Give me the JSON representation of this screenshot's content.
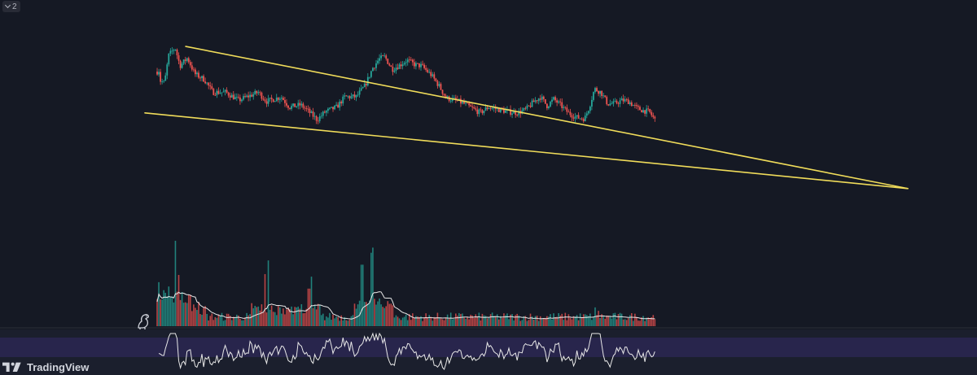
{
  "legend": {
    "pane_count": "2"
  },
  "brand": {
    "name": "TradingView"
  },
  "colors": {
    "background": "#151924",
    "up_candle": "#26a69a",
    "down_candle": "#ef5350",
    "trendline": "#f0dc5a",
    "volume_ma": "#e8e8e8",
    "rsi_line": "#e8e8e8",
    "rsi_band": "#2a2650"
  },
  "chart_data": {
    "type": "candlestick",
    "grid": false,
    "price_path": [
      [
        0,
        0.78
      ],
      [
        1,
        0.84
      ],
      [
        4,
        0.7
      ],
      [
        9,
        0.68
      ],
      [
        14,
        0.92
      ],
      [
        22,
        0.99
      ],
      [
        28,
        0.83
      ],
      [
        37,
        0.9
      ],
      [
        46,
        0.76
      ],
      [
        58,
        0.71
      ],
      [
        68,
        0.6
      ],
      [
        84,
        0.6
      ],
      [
        100,
        0.53
      ],
      [
        110,
        0.56
      ],
      [
        124,
        0.6
      ],
      [
        134,
        0.52
      ],
      [
        152,
        0.56
      ],
      [
        162,
        0.47
      ],
      [
        176,
        0.49
      ],
      [
        186,
        0.43
      ],
      [
        196,
        0.36
      ],
      [
        206,
        0.43
      ],
      [
        220,
        0.47
      ],
      [
        230,
        0.56
      ],
      [
        244,
        0.56
      ],
      [
        255,
        0.66
      ],
      [
        264,
        0.81
      ],
      [
        272,
        0.89
      ],
      [
        279,
        0.91
      ],
      [
        288,
        0.8
      ],
      [
        298,
        0.84
      ],
      [
        306,
        0.88
      ],
      [
        316,
        0.84
      ],
      [
        324,
        0.83
      ],
      [
        336,
        0.75
      ],
      [
        346,
        0.65
      ],
      [
        354,
        0.55
      ],
      [
        366,
        0.53
      ],
      [
        376,
        0.5
      ],
      [
        386,
        0.46
      ],
      [
        396,
        0.42
      ],
      [
        406,
        0.47
      ],
      [
        418,
        0.45
      ],
      [
        430,
        0.43
      ],
      [
        442,
        0.42
      ],
      [
        452,
        0.45
      ],
      [
        462,
        0.52
      ],
      [
        470,
        0.56
      ],
      [
        478,
        0.48
      ],
      [
        486,
        0.54
      ],
      [
        494,
        0.49
      ],
      [
        504,
        0.42
      ],
      [
        514,
        0.38
      ],
      [
        524,
        0.37
      ],
      [
        530,
        0.48
      ],
      [
        536,
        0.63
      ],
      [
        544,
        0.6
      ],
      [
        552,
        0.5
      ],
      [
        560,
        0.5
      ],
      [
        570,
        0.53
      ],
      [
        578,
        0.52
      ],
      [
        588,
        0.46
      ],
      [
        596,
        0.44
      ],
      [
        603,
        0.43
      ],
      [
        610,
        0.36
      ]
    ],
    "overlays": [
      {
        "type": "trendline",
        "label": "upper",
        "from": [
          35,
          1.0
        ],
        "to": [
          920,
          -0.24
        ]
      },
      {
        "type": "trendline",
        "label": "lower",
        "from": [
          -15,
          0.42
        ],
        "to": [
          920,
          -0.24
        ]
      }
    ],
    "x_range": [
      -15,
      920
    ],
    "y_range": [
      -0.27,
      1.05
    ],
    "panes": [
      {
        "name": "volume",
        "series": "bars",
        "moving_average": true,
        "spikes": [
          [
            23,
            1.0
          ],
          [
            26,
            0.6
          ],
          [
            30,
            0.4
          ],
          [
            132,
            0.61
          ],
          [
            137,
            0.77
          ],
          [
            186,
            0.44
          ],
          [
            189,
            0.58
          ],
          [
            251,
            0.72
          ],
          [
            262,
            0.86
          ],
          [
            264,
            0.92
          ],
          [
            536,
            0.22
          ],
          [
            541,
            0.18
          ]
        ]
      },
      {
        "name": "oscillator",
        "series": "line",
        "band": true
      }
    ]
  }
}
